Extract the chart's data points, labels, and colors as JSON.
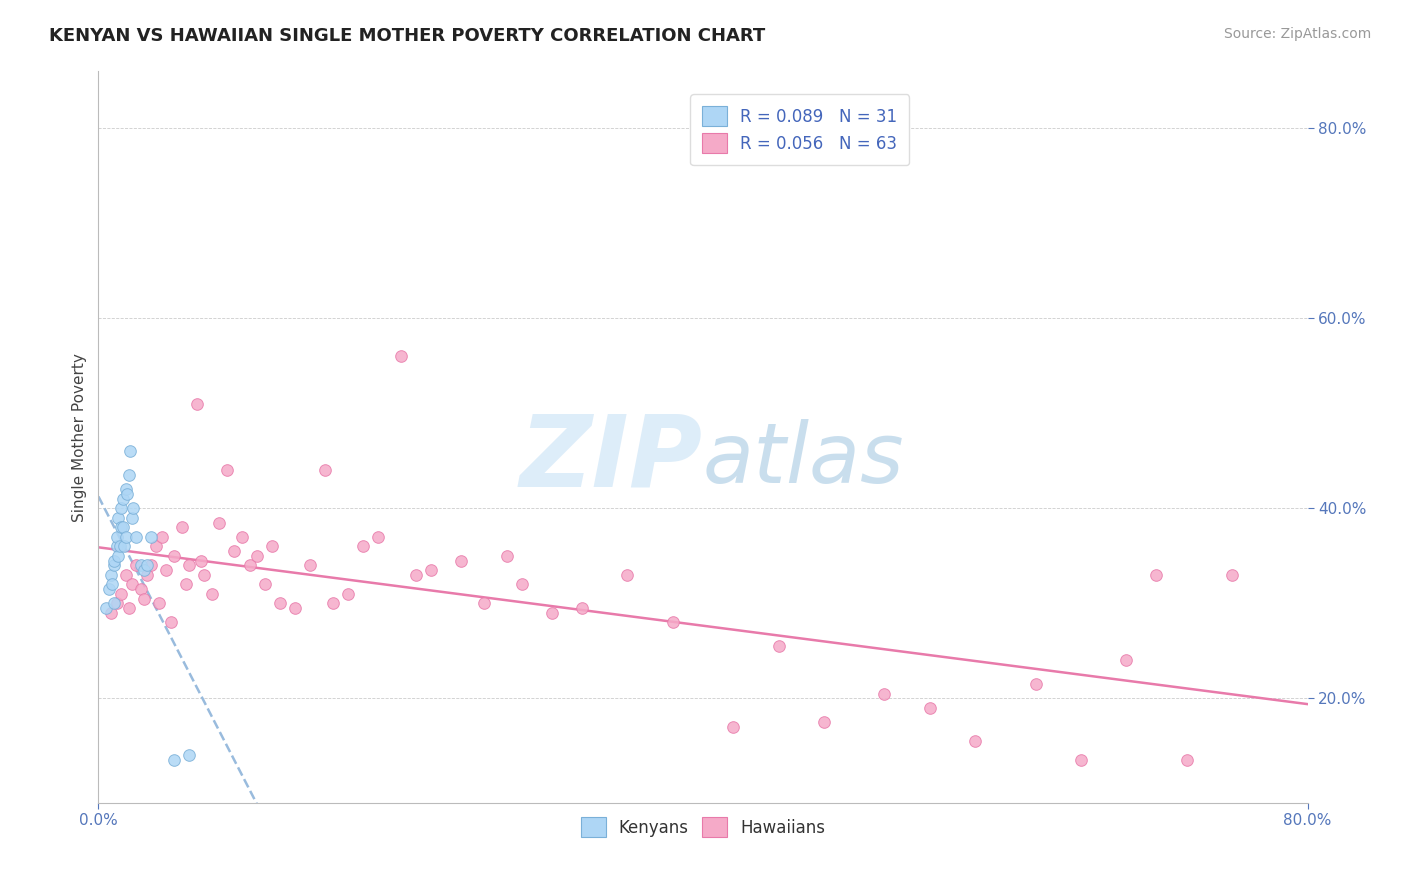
{
  "title": "KENYAN VS HAWAIIAN SINGLE MOTHER POVERTY CORRELATION CHART",
  "source_text": "Source: ZipAtlas.com",
  "ylabel": "Single Mother Poverty",
  "xmin": 0.0,
  "xmax": 0.8,
  "ymin": 0.09,
  "ymax": 0.86,
  "ytick_labels": [
    "20.0%",
    "40.0%",
    "60.0%",
    "80.0%"
  ],
  "ytick_values": [
    0.2,
    0.4,
    0.6,
    0.8
  ],
  "legend_R_kenyan": "R = 0.089",
  "legend_N_kenyan": "N = 31",
  "legend_R_hawaiian": "R = 0.056",
  "legend_N_hawaiian": "N = 63",
  "kenyan_color": "#aed6f5",
  "hawaiian_color": "#f5aac8",
  "kenyan_edge_color": "#7ab0d8",
  "hawaiian_edge_color": "#e87aaa",
  "trendline_kenyan_color": "#99bbdd",
  "trendline_hawaiian_color": "#e87aaa",
  "watermark_color": "#cce4f5",
  "background_color": "#ffffff",
  "kenyan_x": [
    0.005,
    0.007,
    0.008,
    0.009,
    0.01,
    0.01,
    0.01,
    0.012,
    0.012,
    0.013,
    0.013,
    0.014,
    0.015,
    0.015,
    0.016,
    0.016,
    0.017,
    0.018,
    0.018,
    0.019,
    0.02,
    0.021,
    0.022,
    0.023,
    0.025,
    0.028,
    0.03,
    0.032,
    0.035,
    0.05,
    0.06
  ],
  "kenyan_y": [
    0.295,
    0.315,
    0.33,
    0.32,
    0.3,
    0.34,
    0.345,
    0.36,
    0.37,
    0.35,
    0.39,
    0.36,
    0.38,
    0.4,
    0.38,
    0.41,
    0.36,
    0.37,
    0.42,
    0.415,
    0.435,
    0.46,
    0.39,
    0.4,
    0.37,
    0.34,
    0.335,
    0.34,
    0.37,
    0.135,
    0.14
  ],
  "hawaiian_x": [
    0.008,
    0.012,
    0.015,
    0.018,
    0.02,
    0.022,
    0.025,
    0.028,
    0.03,
    0.032,
    0.035,
    0.038,
    0.04,
    0.042,
    0.045,
    0.048,
    0.05,
    0.055,
    0.058,
    0.06,
    0.065,
    0.068,
    0.07,
    0.075,
    0.08,
    0.085,
    0.09,
    0.095,
    0.1,
    0.105,
    0.11,
    0.115,
    0.12,
    0.13,
    0.14,
    0.15,
    0.155,
    0.165,
    0.175,
    0.185,
    0.2,
    0.21,
    0.22,
    0.24,
    0.255,
    0.27,
    0.28,
    0.3,
    0.32,
    0.35,
    0.38,
    0.42,
    0.45,
    0.48,
    0.52,
    0.55,
    0.58,
    0.62,
    0.65,
    0.68,
    0.7,
    0.72,
    0.75
  ],
  "hawaiian_y": [
    0.29,
    0.3,
    0.31,
    0.33,
    0.295,
    0.32,
    0.34,
    0.315,
    0.305,
    0.33,
    0.34,
    0.36,
    0.3,
    0.37,
    0.335,
    0.28,
    0.35,
    0.38,
    0.32,
    0.34,
    0.51,
    0.345,
    0.33,
    0.31,
    0.385,
    0.44,
    0.355,
    0.37,
    0.34,
    0.35,
    0.32,
    0.36,
    0.3,
    0.295,
    0.34,
    0.44,
    0.3,
    0.31,
    0.36,
    0.37,
    0.56,
    0.33,
    0.335,
    0.345,
    0.3,
    0.35,
    0.32,
    0.29,
    0.295,
    0.33,
    0.28,
    0.17,
    0.255,
    0.175,
    0.205,
    0.19,
    0.155,
    0.215,
    0.135,
    0.24,
    0.33,
    0.135,
    0.33
  ]
}
